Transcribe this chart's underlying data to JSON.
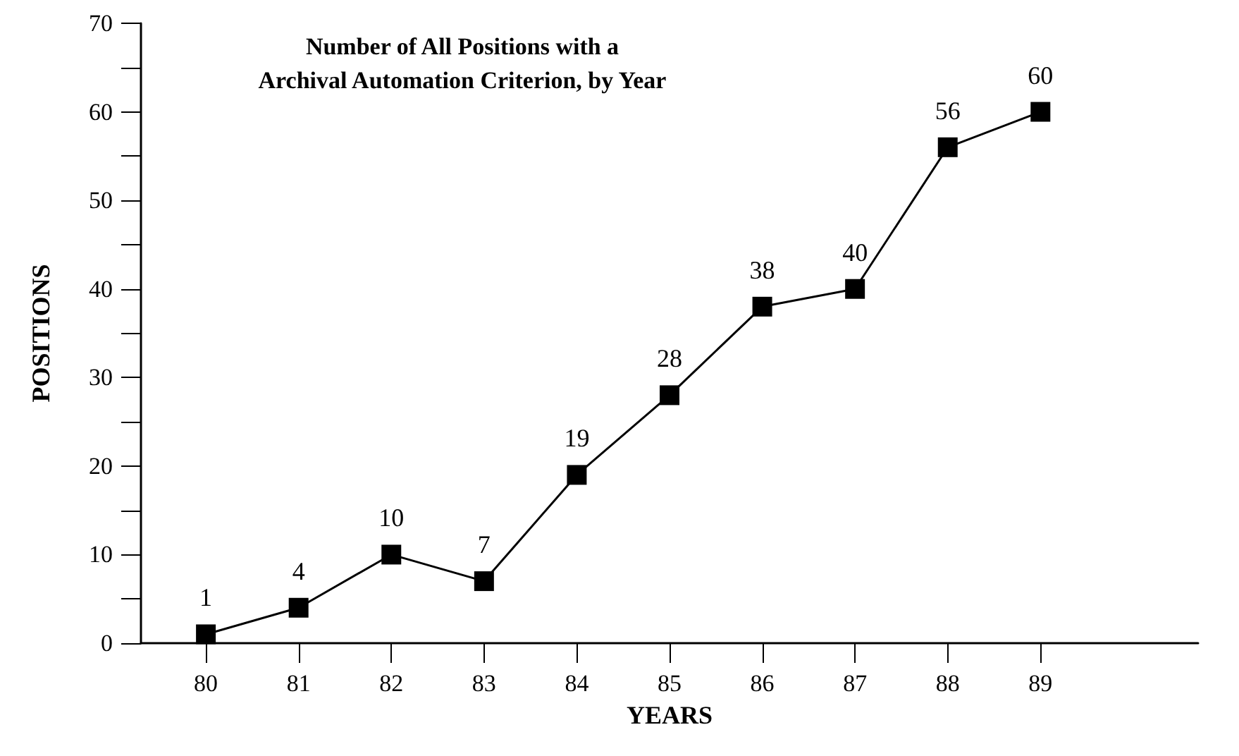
{
  "chart_data": {
    "type": "line",
    "title": "Number of All Positions with a\nArchival Automation Criterion, by Year",
    "xlabel": "YEARS",
    "ylabel": "POSITIONS",
    "x": [
      80,
      81,
      82,
      83,
      84,
      85,
      86,
      87,
      88,
      89
    ],
    "values": [
      1,
      4,
      10,
      7,
      19,
      28,
      38,
      40,
      56,
      60
    ],
    "color": "#000000",
    "marker": "square",
    "line_style": "solid",
    "data_labels": true,
    "xlim": [
      79.3,
      90.7
    ],
    "xticks": [
      80,
      81,
      82,
      83,
      84,
      85,
      86,
      87,
      88,
      89
    ],
    "ylim": [
      0,
      70
    ],
    "yticks": [
      0,
      {
        "value": 5,
        "label": null
      },
      10,
      {
        "value": 15,
        "label": null
      },
      20,
      {
        "value": 25,
        "label": null
      },
      30,
      {
        "value": 35,
        "label": null
      },
      40,
      {
        "value": 45,
        "label": null
      },
      50,
      {
        "value": 55,
        "label": null
      },
      60,
      {
        "value": 65,
        "label": null
      },
      70
    ]
  }
}
